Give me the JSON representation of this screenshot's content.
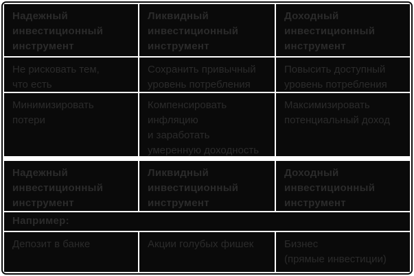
{
  "colors": {
    "page_bg": "#ffffff",
    "frame_border": "#0a0a0a",
    "cell_bg": "#0a0a0a",
    "cell_text": "#2b2b2b",
    "gridline": "#ffffff"
  },
  "table": {
    "columns": 3,
    "sections": [
      {
        "rows": [
          {
            "type": "header",
            "cells": [
              "Надежный\nинвестиционный\nинструмент",
              "Ликвидный\nинвестиционный\nинструмент",
              "Доходный\nинвестиционный\nинструмент"
            ]
          },
          {
            "type": "body",
            "cells": [
              "Не рисковать тем,\nчто есть",
              "Сохранить привычный\nуровень потребления",
              "Повысить доступный\nуровень потребления"
            ]
          },
          {
            "type": "body",
            "cells": [
              "Минимизировать\nпотери",
              "Компенсировать\nинфляцию\nи заработать\nумеренную доходность",
              "Максимизировать\nпотенциальный доход"
            ]
          }
        ]
      },
      {
        "rows": [
          {
            "type": "header",
            "cells": [
              "Надежный\nинвестиционный\nинструмент",
              "Ликвидный\nинвестиционный\nинструмент",
              "Доходный\nинвестиционный\nинструмент"
            ]
          },
          {
            "type": "section-label",
            "cells": [
              "Например:"
            ]
          },
          {
            "type": "body",
            "cells": [
              "Депозит в банке",
              "Акции голубых фишек",
              "Бизнес\n(прямые инвестиции)"
            ]
          }
        ]
      }
    ]
  }
}
